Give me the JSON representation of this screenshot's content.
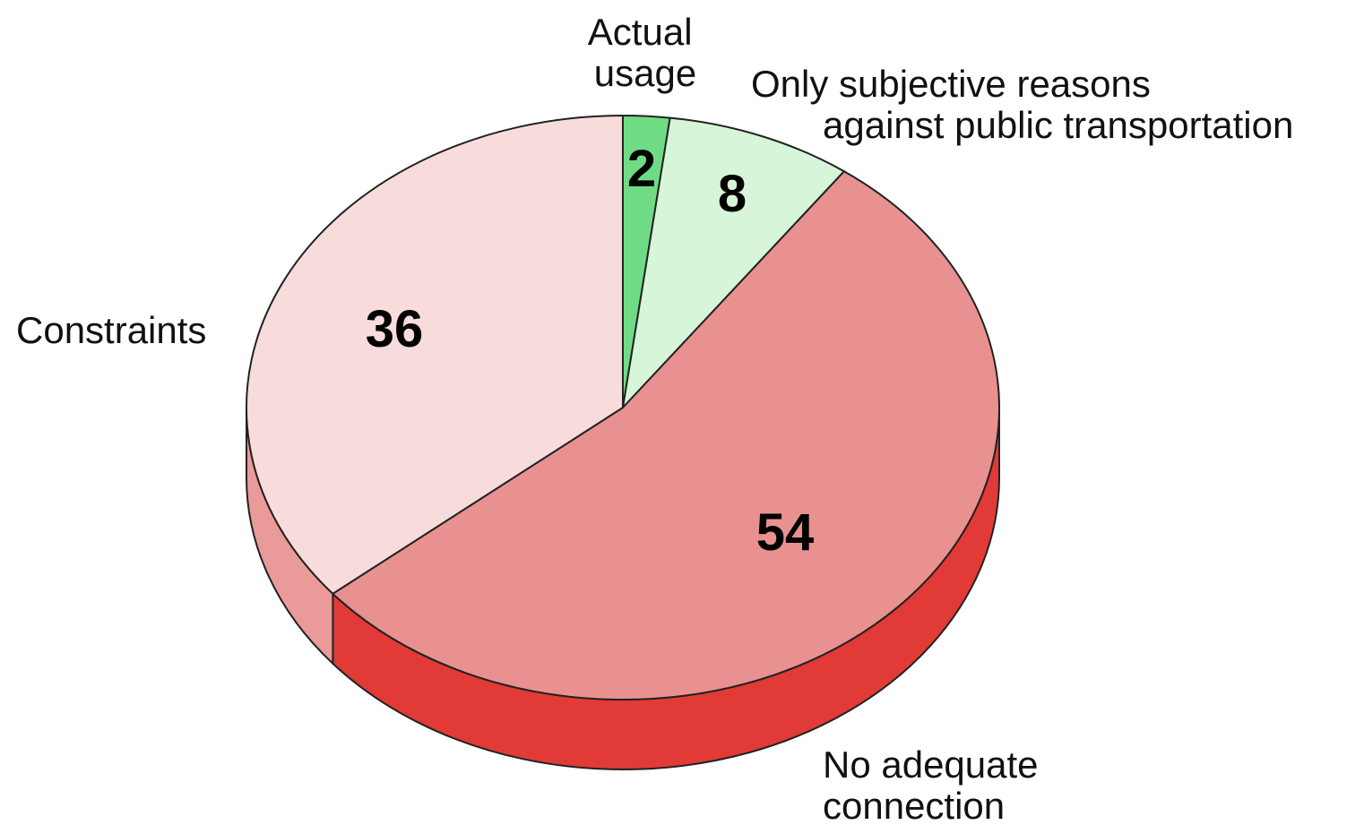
{
  "chart_data": {
    "type": "pie",
    "style": "3d",
    "title": "",
    "slices": [
      {
        "label_lines": [
          "Actual",
          "usage"
        ],
        "value": 2,
        "value_label": "2",
        "color": "#6fdc85",
        "side_color": "#4fbf63"
      },
      {
        "label_lines": [
          "Only subjective reasons",
          "against public transportation"
        ],
        "value": 8,
        "value_label": "8",
        "color": "#d7f6d9",
        "side_color": "#b9e6bb"
      },
      {
        "label_lines": [
          "No adequate",
          "connection"
        ],
        "value": 54,
        "value_label": "54",
        "color": "#e99191",
        "side_color": "#e23a36"
      },
      {
        "label_lines": [
          "Constraints"
        ],
        "value": 36,
        "value_label": "36",
        "color": "#f8dcdc",
        "side_color": "#ea9a98"
      }
    ]
  }
}
